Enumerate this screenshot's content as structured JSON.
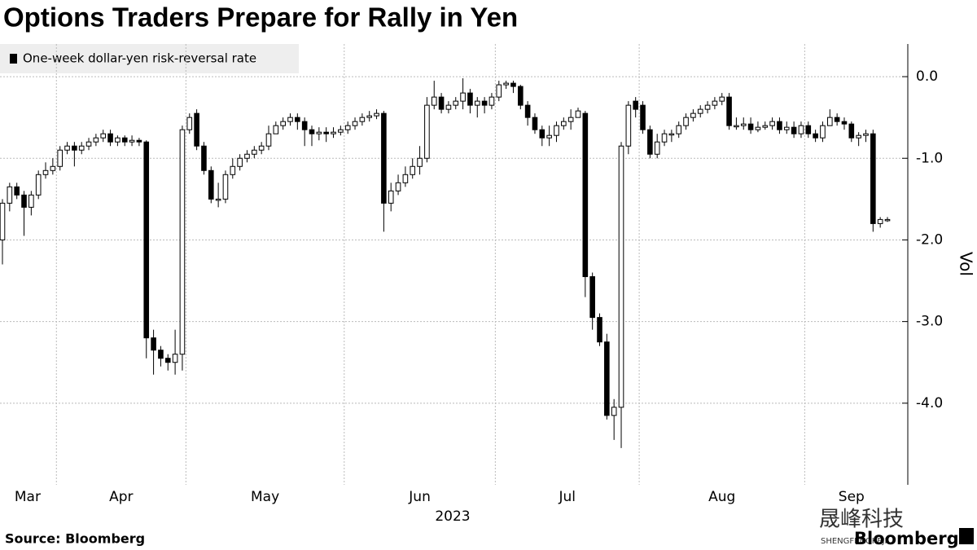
{
  "chart_data": {
    "type": "candlestick",
    "title": "Options Traders Prepare for Rally in Yen",
    "series_name": "One-week dollar-yen risk-reversal rate",
    "color": "#000000",
    "x_label": "2023",
    "y_label": "Vol",
    "source": "Source: Bloomberg",
    "brand": "Bloomberg",
    "watermark": "晟峰科技",
    "watermark_sub": "SHENGFENGKEJI",
    "ylim": [
      -5.0,
      0.4
    ],
    "yticks": [
      {
        "value": 0,
        "label": "0.0"
      },
      {
        "value": -1,
        "label": "-1.0"
      },
      {
        "value": -2,
        "label": "-2.0"
      },
      {
        "value": -3,
        "label": "-3.0"
      },
      {
        "value": -4,
        "label": "-4.0"
      }
    ],
    "grid": true,
    "categories": [
      "Mar",
      null,
      null,
      null,
      null,
      null,
      null,
      null,
      "Apr",
      null,
      null,
      null,
      null,
      null,
      null,
      null,
      null,
      null,
      null,
      null,
      null,
      null,
      null,
      null,
      null,
      null,
      "May",
      null,
      null,
      null,
      null,
      null,
      null,
      null,
      null,
      null,
      null,
      null,
      null,
      null,
      null,
      null,
      null,
      null,
      null,
      null,
      null,
      null,
      "Jun",
      null,
      null,
      null,
      null,
      null,
      null,
      null,
      null,
      null,
      null,
      null,
      null,
      null,
      null,
      null,
      null,
      null,
      null,
      null,
      null,
      "Jul",
      null,
      null,
      null,
      null,
      null,
      null,
      null,
      null,
      null,
      null,
      null,
      null,
      null,
      null,
      null,
      null,
      null,
      null,
      null,
      "Aug",
      null,
      null,
      null,
      null,
      null,
      null,
      null,
      null,
      null,
      null,
      null,
      null,
      null,
      null,
      null,
      null,
      null,
      null,
      null,
      null,
      null,
      null,
      "Sep",
      null,
      null,
      null,
      null,
      null,
      null,
      null,
      null,
      null,
      null,
      null
    ],
    "open": [
      -2.0,
      -1.55,
      -1.35,
      -1.45,
      -1.6,
      -1.45,
      -1.2,
      -1.15,
      -1.1,
      -0.9,
      -0.85,
      -0.9,
      -0.85,
      -0.8,
      -0.75,
      -0.7,
      -0.8,
      -0.75,
      -0.8,
      -0.78,
      -0.8,
      -3.2,
      -3.35,
      -3.45,
      -3.5,
      -3.4,
      -0.65,
      -0.45,
      -0.85,
      -1.15,
      -1.5,
      -1.5,
      -1.2,
      -1.1,
      -1.0,
      -0.95,
      -0.9,
      -0.85,
      -0.7,
      -0.6,
      -0.55,
      -0.5,
      -0.55,
      -0.65,
      -0.7,
      -0.68,
      -0.7,
      -0.68,
      -0.65,
      -0.6,
      -0.55,
      -0.5,
      -0.48,
      -0.45,
      -1.55,
      -1.4,
      -1.3,
      -1.2,
      -1.1,
      -1.0,
      -0.35,
      -0.25,
      -0.4,
      -0.35,
      -0.3,
      -0.2,
      -0.35,
      -0.3,
      -0.35,
      -0.25,
      -0.1,
      -0.08,
      -0.12,
      -0.35,
      -0.5,
      -0.65,
      -0.75,
      -0.72,
      -0.6,
      -0.55,
      -0.5,
      -0.45,
      -2.45,
      -2.95,
      -3.25,
      -4.15,
      -4.05,
      -0.85,
      -0.3,
      -0.35,
      -0.65,
      -0.95,
      -0.8,
      -0.7,
      -0.7,
      -0.6,
      -0.5,
      -0.45,
      -0.4,
      -0.35,
      -0.3,
      -0.25,
      -0.6,
      -0.6,
      -0.58,
      -0.65,
      -0.62,
      -0.6,
      -0.55,
      -0.65,
      -0.62,
      -0.7,
      -0.6,
      -0.7,
      -0.75,
      -0.6,
      -0.5,
      -0.55,
      -0.58,
      -0.75,
      -0.72,
      -0.7,
      -1.8,
      -1.75
    ],
    "high": [
      -1.5,
      -1.3,
      -1.3,
      -1.4,
      -1.4,
      -1.15,
      -1.05,
      -1.0,
      -0.85,
      -0.8,
      -0.8,
      -0.8,
      -0.75,
      -0.7,
      -0.65,
      -0.65,
      -0.72,
      -0.72,
      -0.72,
      -0.75,
      -0.78,
      -3.1,
      -3.3,
      -3.4,
      -3.1,
      -0.6,
      -0.45,
      -0.4,
      -0.8,
      -1.1,
      -1.3,
      -1.15,
      -1.0,
      -0.95,
      -0.9,
      -0.85,
      -0.8,
      -0.6,
      -0.55,
      -0.5,
      -0.45,
      -0.45,
      -0.5,
      -0.6,
      -0.62,
      -0.62,
      -0.62,
      -0.6,
      -0.55,
      -0.5,
      -0.45,
      -0.42,
      -0.4,
      -0.42,
      -1.3,
      -1.2,
      -1.1,
      -1.0,
      -0.85,
      -0.25,
      -0.05,
      -0.2,
      -0.3,
      -0.25,
      -0.02,
      -0.15,
      -0.25,
      -0.25,
      -0.2,
      -0.05,
      -0.05,
      -0.05,
      -0.1,
      -0.3,
      -0.45,
      -0.6,
      -0.6,
      -0.55,
      -0.5,
      -0.4,
      -0.38,
      -0.42,
      -2.4,
      -2.9,
      -3.15,
      -3.95,
      -0.8,
      -0.3,
      -0.25,
      -0.3,
      -0.6,
      -0.7,
      -0.65,
      -0.65,
      -0.55,
      -0.45,
      -0.4,
      -0.35,
      -0.3,
      -0.25,
      -0.2,
      -0.2,
      -0.5,
      -0.5,
      -0.5,
      -0.55,
      -0.55,
      -0.5,
      -0.5,
      -0.55,
      -0.55,
      -0.55,
      -0.55,
      -0.65,
      -0.55,
      -0.4,
      -0.45,
      -0.5,
      -0.55,
      -0.68,
      -0.65,
      -0.65,
      -1.72,
      -1.72
    ],
    "low": [
      -2.3,
      -1.65,
      -1.5,
      -1.95,
      -1.7,
      -1.5,
      -1.25,
      -1.2,
      -1.15,
      -0.95,
      -1.1,
      -0.95,
      -0.9,
      -0.85,
      -0.8,
      -0.85,
      -0.85,
      -0.85,
      -0.85,
      -0.85,
      -3.45,
      -3.65,
      -3.55,
      -3.6,
      -3.65,
      -3.6,
      -0.7,
      -0.9,
      -1.2,
      -1.55,
      -1.6,
      -1.55,
      -1.25,
      -1.15,
      -1.05,
      -1.0,
      -0.95,
      -0.9,
      -0.7,
      -0.65,
      -0.6,
      -0.65,
      -0.85,
      -0.85,
      -0.78,
      -0.8,
      -0.75,
      -0.72,
      -0.7,
      -0.65,
      -0.6,
      -0.55,
      -0.52,
      -1.9,
      -1.65,
      -1.45,
      -1.35,
      -1.25,
      -1.2,
      -1.05,
      -0.4,
      -0.45,
      -0.45,
      -0.4,
      -0.4,
      -0.45,
      -0.5,
      -0.45,
      -0.4,
      -0.3,
      -0.15,
      -0.2,
      -0.4,
      -0.6,
      -0.7,
      -0.85,
      -0.85,
      -0.8,
      -0.65,
      -0.65,
      -0.5,
      -2.7,
      -3.1,
      -3.3,
      -4.2,
      -4.45,
      -4.55,
      -0.95,
      -0.5,
      -0.7,
      -1.0,
      -1.0,
      -0.85,
      -0.8,
      -0.75,
      -0.65,
      -0.55,
      -0.5,
      -0.45,
      -0.4,
      -0.35,
      -0.65,
      -0.65,
      -0.65,
      -0.7,
      -0.68,
      -0.65,
      -0.65,
      -0.7,
      -0.7,
      -0.75,
      -0.75,
      -0.75,
      -0.8,
      -0.8,
      -0.6,
      -0.6,
      -0.65,
      -0.8,
      -0.85,
      -0.8,
      -1.9,
      -1.85,
      -1.78
    ],
    "close": [
      -1.55,
      -1.35,
      -1.45,
      -1.6,
      -1.45,
      -1.2,
      -1.15,
      -1.1,
      -0.9,
      -0.85,
      -0.9,
      -0.85,
      -0.8,
      -0.75,
      -0.7,
      -0.8,
      -0.75,
      -0.8,
      -0.78,
      -0.8,
      -3.2,
      -3.35,
      -3.45,
      -3.5,
      -3.4,
      -0.65,
      -0.5,
      -0.85,
      -1.15,
      -1.5,
      -1.5,
      -1.2,
      -1.1,
      -1.0,
      -0.95,
      -0.9,
      -0.85,
      -0.7,
      -0.6,
      -0.55,
      -0.5,
      -0.55,
      -0.65,
      -0.7,
      -0.68,
      -0.7,
      -0.68,
      -0.65,
      -0.6,
      -0.55,
      -0.5,
      -0.48,
      -0.45,
      -1.55,
      -1.4,
      -1.3,
      -1.2,
      -1.1,
      -1.0,
      -0.35,
      -0.25,
      -0.4,
      -0.35,
      -0.3,
      -0.2,
      -0.35,
      -0.3,
      -0.35,
      -0.25,
      -0.1,
      -0.08,
      -0.12,
      -0.35,
      -0.5,
      -0.65,
      -0.75,
      -0.72,
      -0.6,
      -0.55,
      -0.5,
      -0.42,
      -2.45,
      -2.95,
      -3.25,
      -4.15,
      -4.05,
      -0.85,
      -0.35,
      -0.4,
      -0.65,
      -0.95,
      -0.8,
      -0.7,
      -0.7,
      -0.6,
      -0.5,
      -0.45,
      -0.4,
      -0.35,
      -0.3,
      -0.25,
      -0.6,
      -0.6,
      -0.58,
      -0.65,
      -0.62,
      -0.6,
      -0.55,
      -0.65,
      -0.62,
      -0.7,
      -0.6,
      -0.7,
      -0.75,
      -0.6,
      -0.5,
      -0.55,
      -0.58,
      -0.75,
      -0.72,
      -0.7,
      -1.8,
      -1.75,
      -1.75
    ]
  }
}
